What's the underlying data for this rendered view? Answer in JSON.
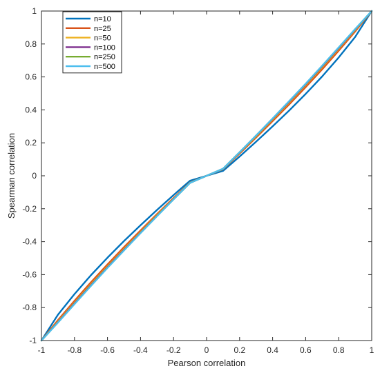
{
  "chart_data": {
    "type": "line",
    "title": "",
    "xlabel": "Pearson correlation",
    "ylabel": "Spearman correlation",
    "xlim": [
      -1,
      1
    ],
    "ylim": [
      -1,
      1
    ],
    "xticks": [
      "-1",
      "-0.8",
      "-0.6",
      "-0.4",
      "-0.2",
      "0",
      "0.2",
      "0.4",
      "0.6",
      "0.8",
      "1"
    ],
    "yticks": [
      "-1",
      "-0.8",
      "-0.6",
      "-0.4",
      "-0.2",
      "0",
      "0.2",
      "0.4",
      "0.6",
      "0.8",
      "1"
    ],
    "grid": false,
    "legend_position": "top-left",
    "x": [
      -1,
      -0.9,
      -0.8,
      -0.7,
      -0.6,
      -0.5,
      -0.4,
      -0.3,
      -0.2,
      -0.1,
      0,
      0.1,
      0.2,
      0.3,
      0.4,
      0.5,
      0.6,
      0.7,
      0.8,
      0.9,
      1
    ],
    "series": [
      {
        "name": "n=10",
        "color": "#0072BD",
        "values": [
          -1,
          -0.843,
          -0.718,
          -0.603,
          -0.497,
          -0.396,
          -0.3,
          -0.207,
          -0.117,
          -0.03,
          0,
          0.03,
          0.117,
          0.207,
          0.3,
          0.396,
          0.497,
          0.603,
          0.718,
          0.843,
          1
        ]
      },
      {
        "name": "n=25",
        "color": "#D95319",
        "values": [
          -1,
          -0.876,
          -0.759,
          -0.646,
          -0.538,
          -0.433,
          -0.332,
          -0.232,
          -0.135,
          -0.04,
          0,
          0.04,
          0.135,
          0.232,
          0.332,
          0.433,
          0.538,
          0.646,
          0.759,
          0.876,
          1
        ]
      },
      {
        "name": "n=50",
        "color": "#EDB120",
        "values": [
          -1,
          -0.884,
          -0.77,
          -0.658,
          -0.55,
          -0.444,
          -0.341,
          -0.239,
          -0.14,
          -0.042,
          0,
          0.042,
          0.14,
          0.239,
          0.341,
          0.444,
          0.55,
          0.658,
          0.77,
          0.884,
          1
        ]
      },
      {
        "name": "n=100",
        "color": "#7E2F8E",
        "values": [
          -1,
          -0.888,
          -0.775,
          -0.664,
          -0.555,
          -0.449,
          -0.345,
          -0.243,
          -0.142,
          -0.043,
          0,
          0.043,
          0.142,
          0.243,
          0.345,
          0.449,
          0.555,
          0.664,
          0.775,
          0.888,
          1
        ]
      },
      {
        "name": "n=250",
        "color": "#77AC30",
        "values": [
          -1,
          -0.89,
          -0.778,
          -0.667,
          -0.558,
          -0.452,
          -0.347,
          -0.244,
          -0.143,
          -0.043,
          0,
          0.043,
          0.143,
          0.244,
          0.347,
          0.452,
          0.558,
          0.667,
          0.778,
          0.89,
          1
        ]
      },
      {
        "name": "n=500",
        "color": "#4DBEEE",
        "values": [
          -1,
          -0.891,
          -0.779,
          -0.668,
          -0.559,
          -0.453,
          -0.348,
          -0.245,
          -0.143,
          -0.043,
          0,
          0.043,
          0.143,
          0.245,
          0.348,
          0.453,
          0.559,
          0.668,
          0.779,
          0.891,
          1
        ]
      }
    ]
  }
}
